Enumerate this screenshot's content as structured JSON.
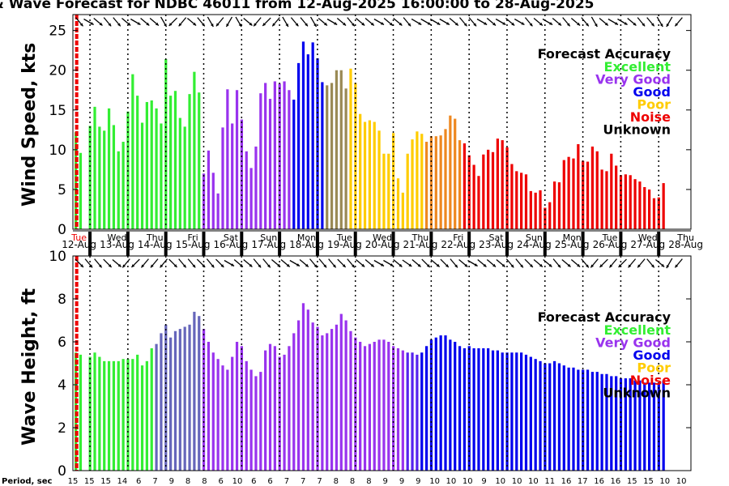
{
  "title": "& Wave Forecast for NDBC 46011 from 12-Aug-2025 16:00:00 to 28-Aug-2025",
  "period_label": "Period, sec",
  "days": [
    "Tue",
    "Wed",
    "Thu",
    "Fri",
    "Sat",
    "Sun",
    "Mon",
    "Tue",
    "Wed",
    "Thu",
    "Fri",
    "Sat",
    "Sun",
    "Mon",
    "Tue",
    "Wed",
    "Thu"
  ],
  "dates": [
    "12-Aug",
    "13-Aug",
    "14-Aug",
    "15-Aug",
    "16-Aug",
    "17-Aug",
    "18-Aug",
    "19-Aug",
    "20-Aug",
    "21-Aug",
    "22-Aug",
    "23-Aug",
    "24-Aug",
    "25-Aug",
    "26-Aug",
    "27-Aug",
    "28-Aug"
  ],
  "periods": [
    "15",
    "15",
    "15",
    "14",
    "6",
    "7",
    "9",
    "8",
    "8",
    "6",
    "10",
    "6",
    "6",
    "7",
    "7",
    "7",
    "8",
    "8",
    "8",
    "9",
    "9",
    "9",
    "10",
    "10",
    "10",
    "9",
    "10",
    "10",
    "10",
    "11",
    "16",
    "17",
    "16",
    "16",
    "15",
    "15",
    "10",
    "10"
  ],
  "legend": {
    "title": "Forecast Accuracy",
    "items": [
      {
        "label": "Excellent",
        "color": "#33ee33"
      },
      {
        "label": "Very Good",
        "color": "#9933ee"
      },
      {
        "label": "Good",
        "color": "#0000ee"
      },
      {
        "label": "Poor",
        "color": "#ffcc00"
      },
      {
        "label": "Noise",
        "color": "#ee0000"
      },
      {
        "label": "Unknown",
        "color": "#000000"
      }
    ]
  },
  "chart_data": [
    {
      "type": "bar",
      "ylabel": "Wind Speed, kts",
      "ylim": [
        0,
        27
      ],
      "yticks": [
        "0",
        "5",
        "10",
        "15",
        "20",
        "25"
      ],
      "xlim_days": [
        0,
        16.3
      ],
      "bar_interval_days": 0.125,
      "values": [
        12.2,
        9.6,
        0,
        13.0,
        15.4,
        12.9,
        12.4,
        15.2,
        13.1,
        9.8,
        11.0,
        14.8,
        19.5,
        16.8,
        13.4,
        16.0,
        16.2,
        15.2,
        13.3,
        21.4,
        16.8,
        17.4,
        14.0,
        12.9,
        17.0,
        19.8,
        17.2,
        7.0,
        9.9,
        7.1,
        4.5,
        12.8,
        17.6,
        13.3,
        17.5,
        13.8,
        9.8,
        7.7,
        10.4,
        17.1,
        18.4,
        16.4,
        18.6,
        18.3,
        18.6,
        17.5,
        16.3,
        20.9,
        23.6,
        22.0,
        23.5,
        21.5,
        18.5,
        18.1,
        18.4,
        20.0,
        20.0,
        17.7,
        20.2,
        18.4,
        14.5,
        13.5,
        13.7,
        13.5,
        12.4,
        9.5,
        9.5,
        12.1,
        6.4,
        4.6,
        9.5,
        11.3,
        12.3,
        12.0,
        11.0,
        11.7,
        11.7,
        11.8,
        12.6,
        14.3,
        13.9,
        11.2,
        10.8,
        9.3,
        8.1,
        6.7,
        9.4,
        10.0,
        9.7,
        11.4,
        11.2,
        10.3,
        8.2,
        7.3,
        7.1,
        6.9,
        4.8,
        4.6,
        4.9,
        2.7,
        3.4,
        6.0,
        5.9,
        8.7,
        9.1,
        8.9,
        10.7,
        8.6,
        8.5,
        10.4,
        9.8,
        7.5,
        7.3,
        9.5,
        8.0,
        6.8,
        6.9,
        6.8,
        6.3,
        6.0,
        5.3,
        5.0,
        3.9,
        4.0,
        5.8
      ],
      "direction_deg": [
        320,
        300,
        310,
        320,
        320,
        310,
        300,
        310,
        310,
        330,
        45,
        40,
        310,
        320,
        330,
        40,
        30,
        330,
        310,
        40,
        45,
        40,
        330,
        320,
        320,
        330,
        310,
        300,
        310,
        320,
        310,
        310,
        300,
        310,
        310,
        320,
        300,
        300,
        300,
        300,
        310,
        320,
        320,
        300,
        310,
        300,
        310,
        300,
        320,
        310,
        300,
        310,
        320,
        310,
        320,
        330,
        310,
        300,
        300,
        310,
        320,
        320,
        330,
        30,
        40,
        30
      ]
    },
    {
      "type": "bar",
      "ylabel": "Wave Height, ft",
      "ylim": [
        0,
        10
      ],
      "yticks": [
        "0",
        "2",
        "4",
        "6",
        "8",
        "10"
      ],
      "xlim_days": [
        0,
        16.3
      ],
      "bar_interval_days": 0.125,
      "values": [
        5.5,
        5.4,
        0,
        5.3,
        5.5,
        5.3,
        5.1,
        5.1,
        5.1,
        5.1,
        5.2,
        5.2,
        5.2,
        5.4,
        4.9,
        5.1,
        5.7,
        5.9,
        6.4,
        6.8,
        6.2,
        6.5,
        6.6,
        6.7,
        6.8,
        7.4,
        7.2,
        6.6,
        6.0,
        5.5,
        5.2,
        4.9,
        4.7,
        5.3,
        6.0,
        5.8,
        5.1,
        4.7,
        4.4,
        4.6,
        5.6,
        5.9,
        5.8,
        5.3,
        5.4,
        5.8,
        6.4,
        7.0,
        7.8,
        7.5,
        6.9,
        6.7,
        6.3,
        6.4,
        6.6,
        6.8,
        7.3,
        7.0,
        6.5,
        6.2,
        6.0,
        5.8,
        5.9,
        6.0,
        6.1,
        6.1,
        6.0,
        5.8,
        5.7,
        5.6,
        5.5,
        5.5,
        5.4,
        5.5,
        5.8,
        6.1,
        6.2,
        6.3,
        6.3,
        6.1,
        6.0,
        5.8,
        5.7,
        5.8,
        5.7,
        5.7,
        5.7,
        5.7,
        5.6,
        5.6,
        5.5,
        5.5,
        5.5,
        5.5,
        5.5,
        5.4,
        5.3,
        5.2,
        5.1,
        5.0,
        5.0,
        5.1,
        5.0,
        4.9,
        4.8,
        4.8,
        4.7,
        4.7,
        4.7,
        4.6,
        4.6,
        4.5,
        4.5,
        4.4,
        4.4,
        4.3,
        4.3,
        4.3,
        4.2,
        4.2,
        4.1,
        4.1,
        4.1,
        4.1,
        4.2
      ],
      "direction_deg": [
        315,
        320,
        320,
        315,
        310,
        40,
        45,
        40,
        40,
        40,
        315,
        320,
        320,
        315,
        320,
        315,
        300,
        310,
        310,
        320,
        320,
        310,
        310,
        300,
        310,
        320,
        320,
        320,
        315,
        320,
        310,
        310,
        300,
        300,
        310,
        305,
        310,
        315,
        310,
        315,
        320,
        310,
        300,
        310,
        310,
        310,
        320,
        320,
        315,
        310,
        310,
        320,
        310,
        310,
        320,
        40,
        45,
        40,
        45,
        40,
        40,
        320,
        310,
        30,
        40,
        45
      ]
    }
  ],
  "colors": {
    "spans": [
      {
        "from": 0,
        "to": 27,
        "color": "#33ee33"
      },
      {
        "from": 27,
        "to": 46,
        "color": "#9933ee"
      },
      {
        "from": 46,
        "to": 53,
        "color": "#0000ee"
      },
      {
        "from": 53,
        "to": 58,
        "color": "#9a8a55"
      },
      {
        "from": 58,
        "to": 74,
        "color": "#ffcc00"
      },
      {
        "from": 74,
        "to": 82,
        "color": "#ee8820"
      },
      {
        "from": 82,
        "to": 125,
        "color": "#ee0000"
      }
    ],
    "wave_spans": [
      {
        "from": 0,
        "to": 17,
        "color": "#33ee33"
      },
      {
        "from": 17,
        "to": 27,
        "color": "#6666bb"
      },
      {
        "from": 27,
        "to": 70,
        "color": "#9933ee"
      },
      {
        "from": 70,
        "to": 73,
        "color": "#5522ee"
      },
      {
        "from": 73,
        "to": 125,
        "color": "#0000ee"
      }
    ],
    "now_line": "#ee0000"
  }
}
